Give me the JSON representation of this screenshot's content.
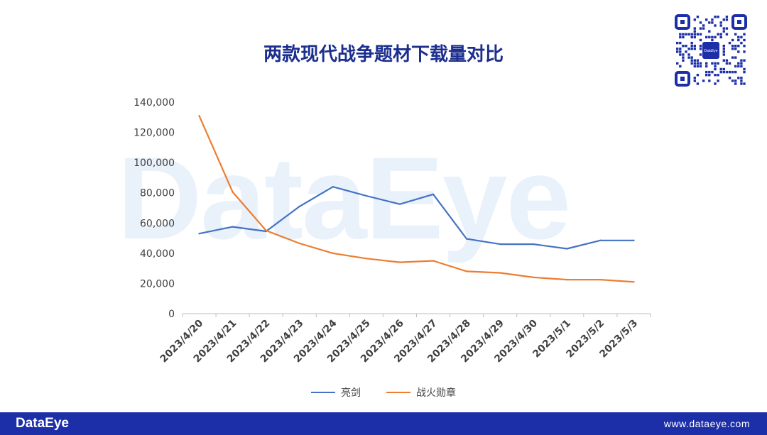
{
  "title": "两款现代战争题材下载量对比",
  "watermark": "DataEye",
  "qr": {
    "center_label": "DataEye"
  },
  "footer": {
    "logo": "DataEye",
    "url": "www.dataeye.com"
  },
  "colors": {
    "series1": "#4472c4",
    "series2": "#ed7d31",
    "footer_bg": "#1c2fa8",
    "title": "#1c2f8e"
  },
  "chart_data": {
    "type": "line",
    "x": [
      "2023/4/20",
      "2023/4/21",
      "2023/4/22",
      "2023/4/23",
      "2023/4/24",
      "2023/4/25",
      "2023/4/26",
      "2023/4/27",
      "2023/4/28",
      "2023/4/29",
      "2023/4/30",
      "2023/5/1",
      "2023/5/2",
      "2023/5/3"
    ],
    "series": [
      {
        "name": "亮剑",
        "color": "#4472c4",
        "values": [
          53000,
          57500,
          54500,
          71000,
          84000,
          78000,
          72500,
          79000,
          49500,
          46000,
          46000,
          43000,
          48500,
          48500
        ]
      },
      {
        "name": "战火勋章",
        "color": "#ed7d31",
        "values": [
          131000,
          80500,
          55000,
          46500,
          40000,
          36500,
          34000,
          35000,
          28000,
          27000,
          24000,
          22500,
          22500,
          21000
        ]
      }
    ],
    "ylim": [
      0,
      140000
    ],
    "yticks": [
      "0",
      "20,000",
      "40,000",
      "60,000",
      "80,000",
      "100,000",
      "120,000",
      "140,000"
    ],
    "legend": "bottom",
    "grid": false
  }
}
